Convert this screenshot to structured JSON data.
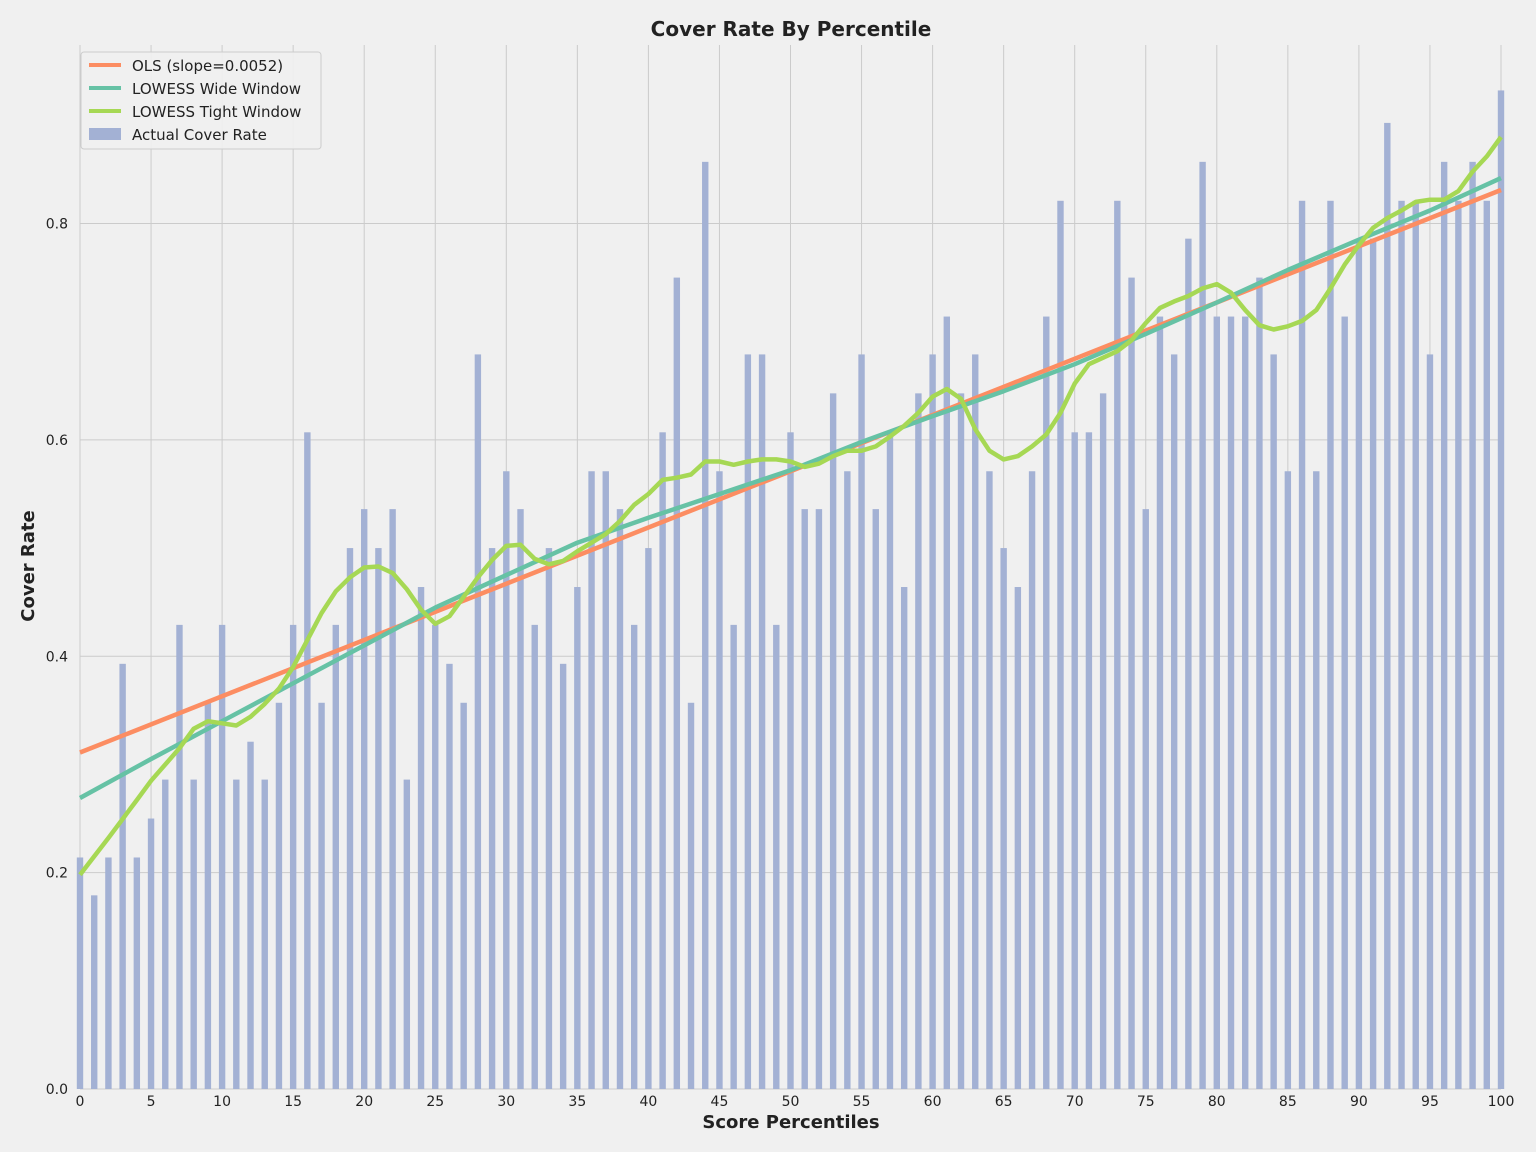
{
  "chart_data": {
    "type": "bar",
    "title": "Cover Rate By Percentile",
    "xlabel": "Score Percentiles",
    "ylabel": "Cover Rate",
    "xlim": [
      0,
      100
    ],
    "ylim": [
      0,
      0.965
    ],
    "xticks": [
      0,
      5,
      10,
      15,
      20,
      25,
      30,
      35,
      40,
      45,
      50,
      55,
      60,
      65,
      70,
      75,
      80,
      85,
      90,
      95,
      100
    ],
    "yticks": [
      0.0,
      0.2,
      0.4,
      0.6,
      0.8
    ],
    "ytick_labels": [
      "0.0",
      "0.2",
      "0.4",
      "0.6",
      "0.8"
    ],
    "grid": true,
    "legend_position": "top-left",
    "colors": {
      "background": "#f0f0f0",
      "grid": "#cbcbcb",
      "bars": "#a3b1d4",
      "ols": "#fc8d62",
      "lowess_wide": "#66c2a5",
      "lowess_tight": "#a6d854"
    },
    "bars": {
      "name": "Actual Cover Rate",
      "x": [
        0,
        1,
        2,
        3,
        4,
        5,
        6,
        7,
        8,
        9,
        10,
        11,
        12,
        13,
        14,
        15,
        16,
        17,
        18,
        19,
        20,
        21,
        22,
        23,
        24,
        25,
        26,
        27,
        28,
        29,
        30,
        31,
        32,
        33,
        34,
        35,
        36,
        37,
        38,
        39,
        40,
        41,
        42,
        43,
        44,
        45,
        46,
        47,
        48,
        49,
        50,
        51,
        52,
        53,
        54,
        55,
        56,
        57,
        58,
        59,
        60,
        61,
        62,
        63,
        64,
        65,
        66,
        67,
        68,
        69,
        70,
        71,
        72,
        73,
        74,
        75,
        76,
        77,
        78,
        79,
        80,
        81,
        82,
        83,
        84,
        85,
        86,
        87,
        88,
        89,
        90,
        91,
        92,
        93,
        94,
        95,
        96,
        97,
        98,
        99,
        100
      ],
      "values": [
        0.214,
        0.179,
        0.214,
        0.393,
        0.214,
        0.25,
        0.286,
        0.429,
        0.286,
        0.357,
        0.429,
        0.286,
        0.321,
        0.286,
        0.357,
        0.429,
        0.607,
        0.357,
        0.429,
        0.5,
        0.536,
        0.5,
        0.536,
        0.286,
        0.464,
        0.429,
        0.393,
        0.357,
        0.679,
        0.5,
        0.571,
        0.536,
        0.429,
        0.5,
        0.393,
        0.464,
        0.571,
        0.571,
        0.536,
        0.429,
        0.5,
        0.607,
        0.75,
        0.357,
        0.857,
        0.571,
        0.429,
        0.679,
        0.679,
        0.429,
        0.607,
        0.536,
        0.536,
        0.643,
        0.571,
        0.679,
        0.536,
        0.607,
        0.464,
        0.643,
        0.679,
        0.714,
        0.643,
        0.679,
        0.571,
        0.5,
        0.464,
        0.571,
        0.714,
        0.821,
        0.607,
        0.607,
        0.643,
        0.821,
        0.75,
        0.536,
        0.714,
        0.679,
        0.786,
        0.857,
        0.714,
        0.714,
        0.714,
        0.75,
        0.679,
        0.571,
        0.821,
        0.571,
        0.821,
        0.714,
        0.786,
        0.786,
        0.893,
        0.821,
        0.821,
        0.679,
        0.857,
        0.821,
        0.857,
        0.821,
        0.923
      ]
    },
    "series": [
      {
        "name": "OLS (slope=0.0052)",
        "type": "line",
        "x": [
          0,
          100
        ],
        "y": [
          0.311,
          0.831
        ]
      },
      {
        "name": "LOWESS Wide Window",
        "type": "line",
        "x": [
          0,
          5,
          10,
          15,
          20,
          25,
          30,
          35,
          40,
          45,
          50,
          55,
          60,
          65,
          70,
          75,
          80,
          85,
          90,
          95,
          100
        ],
        "y": [
          0.269,
          0.305,
          0.34,
          0.375,
          0.41,
          0.445,
          0.475,
          0.505,
          0.528,
          0.55,
          0.572,
          0.598,
          0.622,
          0.645,
          0.67,
          0.698,
          0.727,
          0.757,
          0.785,
          0.812,
          0.842
        ]
      },
      {
        "name": "LOWESS Tight Window",
        "type": "line",
        "x": [
          0,
          2,
          4,
          5,
          7,
          8,
          9,
          10,
          11,
          12,
          13,
          14,
          15,
          16,
          17,
          18,
          19,
          20,
          21,
          22,
          23,
          24,
          25,
          26,
          27,
          28,
          29,
          30,
          31,
          32,
          33,
          34,
          35,
          36,
          37,
          38,
          39,
          40,
          41,
          42,
          43,
          44,
          45,
          46,
          47,
          48,
          49,
          50,
          51,
          52,
          53,
          54,
          55,
          56,
          57,
          58,
          59,
          60,
          61,
          62,
          63,
          64,
          65,
          66,
          67,
          68,
          69,
          70,
          71,
          72,
          73,
          74,
          75,
          76,
          77,
          78,
          79,
          80,
          81,
          82,
          83,
          84,
          85,
          86,
          87,
          88,
          89,
          90,
          91,
          92,
          93,
          94,
          95,
          96,
          97,
          98,
          99,
          100
        ],
        "y": [
          0.198,
          0.232,
          0.267,
          0.285,
          0.315,
          0.333,
          0.34,
          0.338,
          0.336,
          0.344,
          0.356,
          0.37,
          0.39,
          0.415,
          0.44,
          0.46,
          0.473,
          0.482,
          0.483,
          0.477,
          0.462,
          0.443,
          0.43,
          0.437,
          0.455,
          0.473,
          0.489,
          0.502,
          0.503,
          0.49,
          0.485,
          0.488,
          0.497,
          0.505,
          0.513,
          0.525,
          0.54,
          0.55,
          0.563,
          0.565,
          0.568,
          0.58,
          0.58,
          0.577,
          0.58,
          0.582,
          0.582,
          0.58,
          0.575,
          0.578,
          0.585,
          0.59,
          0.59,
          0.594,
          0.603,
          0.613,
          0.625,
          0.64,
          0.647,
          0.638,
          0.61,
          0.59,
          0.582,
          0.585,
          0.594,
          0.605,
          0.625,
          0.652,
          0.67,
          0.676,
          0.682,
          0.692,
          0.708,
          0.722,
          0.728,
          0.733,
          0.74,
          0.744,
          0.736,
          0.72,
          0.706,
          0.702,
          0.705,
          0.71,
          0.72,
          0.74,
          0.762,
          0.78,
          0.796,
          0.805,
          0.812,
          0.82,
          0.822,
          0.822,
          0.83,
          0.848,
          0.862,
          0.88
        ]
      }
    ]
  }
}
